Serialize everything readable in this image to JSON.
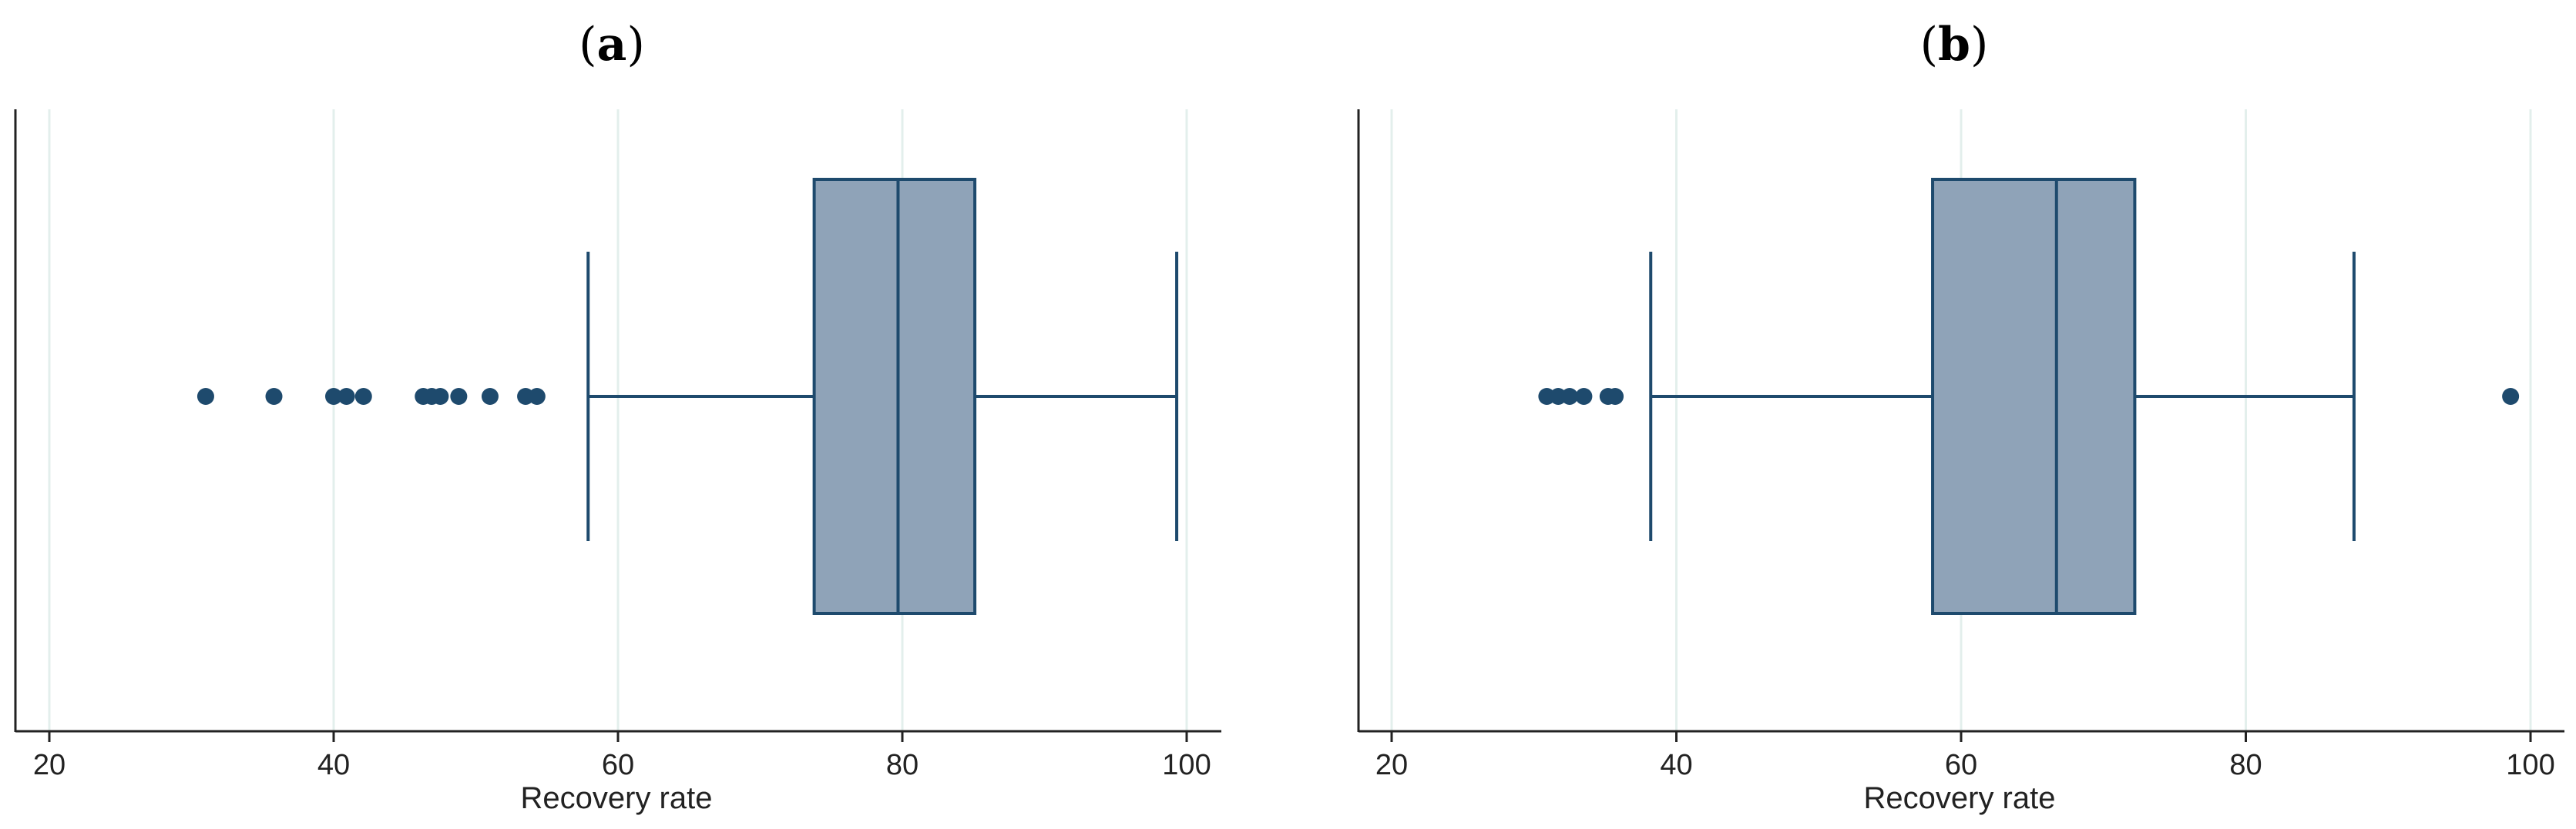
{
  "chart_data": [
    {
      "type": "box",
      "panel_label": "a",
      "xlabel": "Recovery rate",
      "xlim": [
        18,
        102
      ],
      "xticks": [
        20,
        40,
        60,
        80,
        100
      ],
      "grid": true,
      "box": {
        "q1": 73.8,
        "median": 79.7,
        "q3": 85.1,
        "whisker_low": 57.9,
        "whisker_high": 99.3
      },
      "outliers": [
        31.0,
        35.8,
        40.0,
        40.9,
        42.1,
        46.3,
        46.9,
        47.5,
        48.8,
        51.0,
        53.5,
        54.3
      ]
    },
    {
      "type": "box",
      "panel_label": "b",
      "xlabel": "Recovery rate",
      "xlim": [
        18,
        102
      ],
      "xticks": [
        20,
        40,
        60,
        80,
        100
      ],
      "grid": true,
      "box": {
        "q1": 58.0,
        "median": 66.7,
        "q3": 72.2,
        "whisker_low": 38.2,
        "whisker_high": 87.6
      },
      "outliers": [
        30.9,
        31.7,
        32.5,
        33.5,
        35.2,
        35.7,
        98.6
      ]
    }
  ],
  "colors": {
    "box_fill": "#8fa3b8",
    "stroke": "#1e4a6d",
    "grid": "#e3efec",
    "axis": "#222222"
  }
}
